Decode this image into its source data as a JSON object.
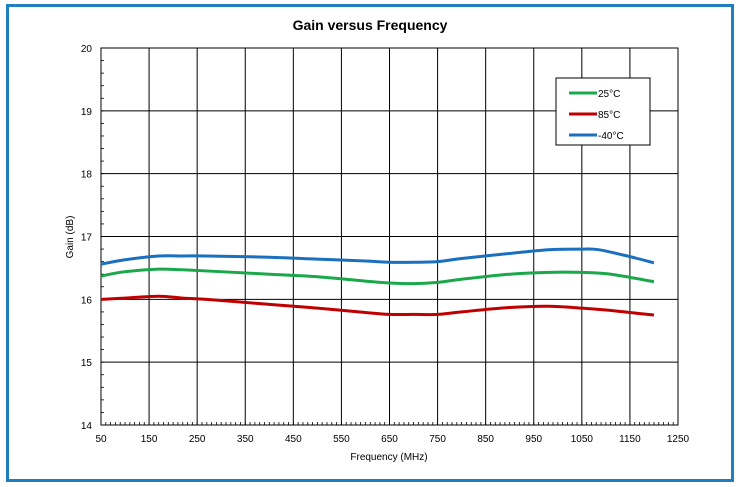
{
  "chart_data": {
    "type": "line",
    "title": "Gain versus Frequency",
    "xlabel": "Frequency (MHz)",
    "ylabel": "Gain (dB)",
    "xlim": [
      50,
      1250
    ],
    "ylim": [
      14,
      20
    ],
    "xticks": [
      50,
      150,
      250,
      350,
      450,
      550,
      650,
      750,
      850,
      950,
      1050,
      1150,
      1250
    ],
    "yticks": [
      14,
      15,
      16,
      17,
      18,
      19,
      20
    ],
    "grid": true,
    "legend_position": "top-right",
    "series": [
      {
        "name": "25°C",
        "color": "#1aa84b",
        "x": [
          50,
          100,
          170,
          220,
          300,
          400,
          500,
          600,
          650,
          700,
          750,
          800,
          900,
          980,
          1050,
          1100,
          1150,
          1200
        ],
        "y": [
          16.37,
          16.44,
          16.48,
          16.47,
          16.44,
          16.4,
          16.36,
          16.29,
          16.26,
          16.25,
          16.27,
          16.32,
          16.4,
          16.43,
          16.43,
          16.41,
          16.35,
          16.28
        ]
      },
      {
        "name": "85°C",
        "color": "#c00000",
        "x": [
          50,
          100,
          170,
          220,
          270,
          400,
          500,
          600,
          650,
          700,
          750,
          800,
          900,
          980,
          1050,
          1100,
          1150,
          1200
        ],
        "y": [
          16.0,
          16.02,
          16.05,
          16.02,
          16.0,
          15.92,
          15.86,
          15.79,
          15.76,
          15.76,
          15.76,
          15.8,
          15.87,
          15.89,
          15.86,
          15.83,
          15.79,
          15.75
        ]
      },
      {
        "name": "-40°C",
        "color": "#1a6fbf",
        "x": [
          50,
          100,
          170,
          220,
          270,
          400,
          500,
          600,
          650,
          700,
          750,
          800,
          900,
          980,
          1050,
          1085,
          1150,
          1200
        ],
        "y": [
          16.56,
          16.63,
          16.69,
          16.69,
          16.69,
          16.67,
          16.64,
          16.61,
          16.59,
          16.59,
          16.6,
          16.65,
          16.73,
          16.79,
          16.8,
          16.79,
          16.68,
          16.58
        ]
      }
    ]
  }
}
